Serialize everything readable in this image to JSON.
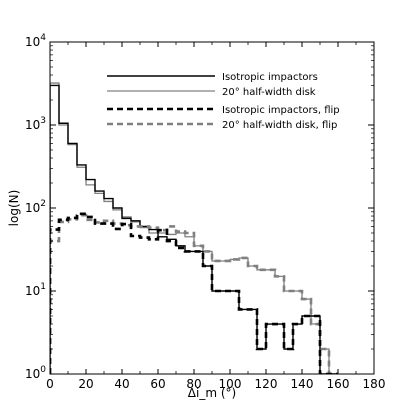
{
  "chart_data": {
    "type": "line",
    "step": true,
    "xlabel": "Δi_m (°)",
    "ylabel": "log(N)",
    "xlim": [
      0,
      180
    ],
    "ylim": [
      1,
      10000
    ],
    "yscale": "log",
    "grid": false,
    "legend_position": "top-right",
    "x_ticks": [
      0,
      20,
      40,
      60,
      80,
      100,
      120,
      140,
      160,
      180
    ],
    "x_tick_labels": [
      "0",
      "20",
      "40",
      "60",
      "80",
      "100",
      "120",
      "140",
      "160",
      "180"
    ],
    "y_ticks": [
      1,
      10,
      100,
      1000,
      10000
    ],
    "y_tick_labels": [
      "10^0",
      "10^1",
      "10^2",
      "10^3",
      "10^4"
    ],
    "bin_edges": [
      0,
      5,
      10,
      15,
      20,
      25,
      30,
      35,
      40,
      45,
      50,
      55,
      60,
      65,
      70,
      75,
      80,
      85,
      90,
      95,
      100,
      105,
      110,
      115,
      120,
      125,
      130,
      135,
      140,
      145,
      150,
      155,
      160
    ],
    "series": [
      {
        "name": "Isotropic impactors",
        "color": "#000000",
        "style": "solid",
        "values": [
          3000,
          1050,
          600,
          330,
          220,
          160,
          130,
          100,
          75,
          70,
          60,
          55,
          45,
          42,
          35,
          30,
          30,
          20,
          10,
          10,
          10,
          6,
          6,
          2,
          4,
          4,
          2,
          4,
          5,
          5,
          1,
          1,
          1
        ]
      },
      {
        "name": "20° half-width disk",
        "color": "#808080",
        "style": "solid",
        "values": [
          3200,
          1000,
          580,
          310,
          190,
          150,
          120,
          95,
          78,
          68,
          58,
          50,
          50,
          48,
          50,
          45,
          35,
          30,
          23,
          23,
          24,
          25,
          20,
          18,
          18,
          15,
          10,
          10,
          8,
          4,
          2,
          1,
          1
        ]
      },
      {
        "name": "Isotropic impactors, flip",
        "color": "#000000",
        "style": "dashed",
        "values": [
          55,
          72,
          76,
          85,
          78,
          65,
          65,
          56,
          64,
          46,
          44,
          42,
          54,
          40,
          33,
          30,
          30,
          20,
          10,
          10,
          10,
          6,
          6,
          2,
          4,
          4,
          2,
          4,
          5,
          5,
          1,
          1,
          1
        ]
      },
      {
        "name": "20° half-width disk, flip",
        "color": "#808080",
        "style": "dashed",
        "values": [
          40,
          68,
          73,
          82,
          72,
          67,
          70,
          65,
          62,
          60,
          60,
          58,
          54,
          60,
          52,
          50,
          35,
          30,
          23,
          23,
          24,
          25,
          20,
          18,
          18,
          15,
          10,
          10,
          8,
          4,
          2,
          1,
          1
        ]
      }
    ]
  }
}
